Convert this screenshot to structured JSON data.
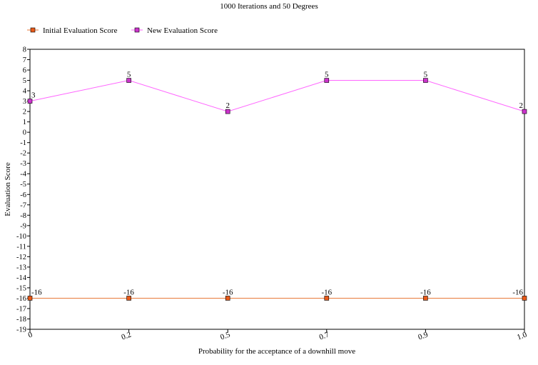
{
  "chart_data": {
    "type": "line",
    "title": "1000 Iterations and 50 Degrees",
    "xlabel": "Probability for the acceptance of a downhill move",
    "ylabel": "Evaluation Score",
    "categories": [
      "0",
      "0.2",
      "0.5",
      "0.7",
      "0.9",
      "1.0"
    ],
    "ylim": [
      -19,
      8
    ],
    "yticks": [
      "8",
      "7",
      "6",
      "5",
      "4",
      "3",
      "2",
      "1",
      "0",
      "-1",
      "-2",
      "-3",
      "-4",
      "-5",
      "-6",
      "-7",
      "-8",
      "-9",
      "-10",
      "-11",
      "-12",
      "-13",
      "-14",
      "-15",
      "-16",
      "-17",
      "-18",
      "-19"
    ],
    "grid": false,
    "legend_position": "top-left",
    "series": [
      {
        "name": "Initial Evaluation Score",
        "color": "#e87a3a",
        "marker_color": "#e85a1a",
        "values": [
          -16,
          -16,
          -16,
          -16,
          -16,
          -16
        ],
        "labels": [
          "-16",
          "-16",
          "-16",
          "-16",
          "-16",
          "-16"
        ]
      },
      {
        "name": "New Evaluation Score",
        "color": "#ff66ff",
        "marker_color": "#cc33cc",
        "values": [
          3,
          5,
          2,
          5,
          5,
          2
        ],
        "labels": [
          "3",
          "5",
          "2",
          "5",
          "5",
          "2"
        ]
      }
    ]
  }
}
